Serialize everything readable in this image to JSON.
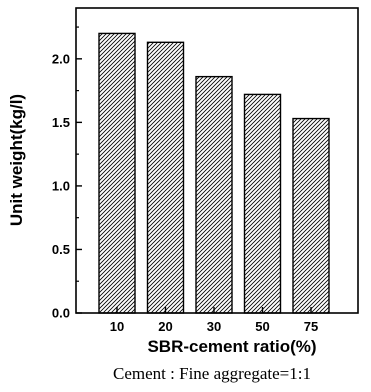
{
  "chart_data": {
    "type": "bar",
    "categories": [
      "10",
      "20",
      "30",
      "50",
      "75"
    ],
    "values": [
      2.2,
      2.13,
      1.86,
      1.72,
      1.53
    ],
    "xlabel": "SBR-cement ratio(%)",
    "ylabel": "Unit weight(kg/l)",
    "ylim": [
      0,
      2.4
    ],
    "yticks": [
      "0.0",
      "0.5",
      "1.0",
      "1.5",
      "2.0"
    ],
    "grid": false,
    "bar_fill": "hatched"
  },
  "caption": "Cement : Fine  aggregate=1:1",
  "colors": {
    "bar_stroke": "#000000",
    "hatch": "#000000",
    "background": "#ffffff"
  }
}
